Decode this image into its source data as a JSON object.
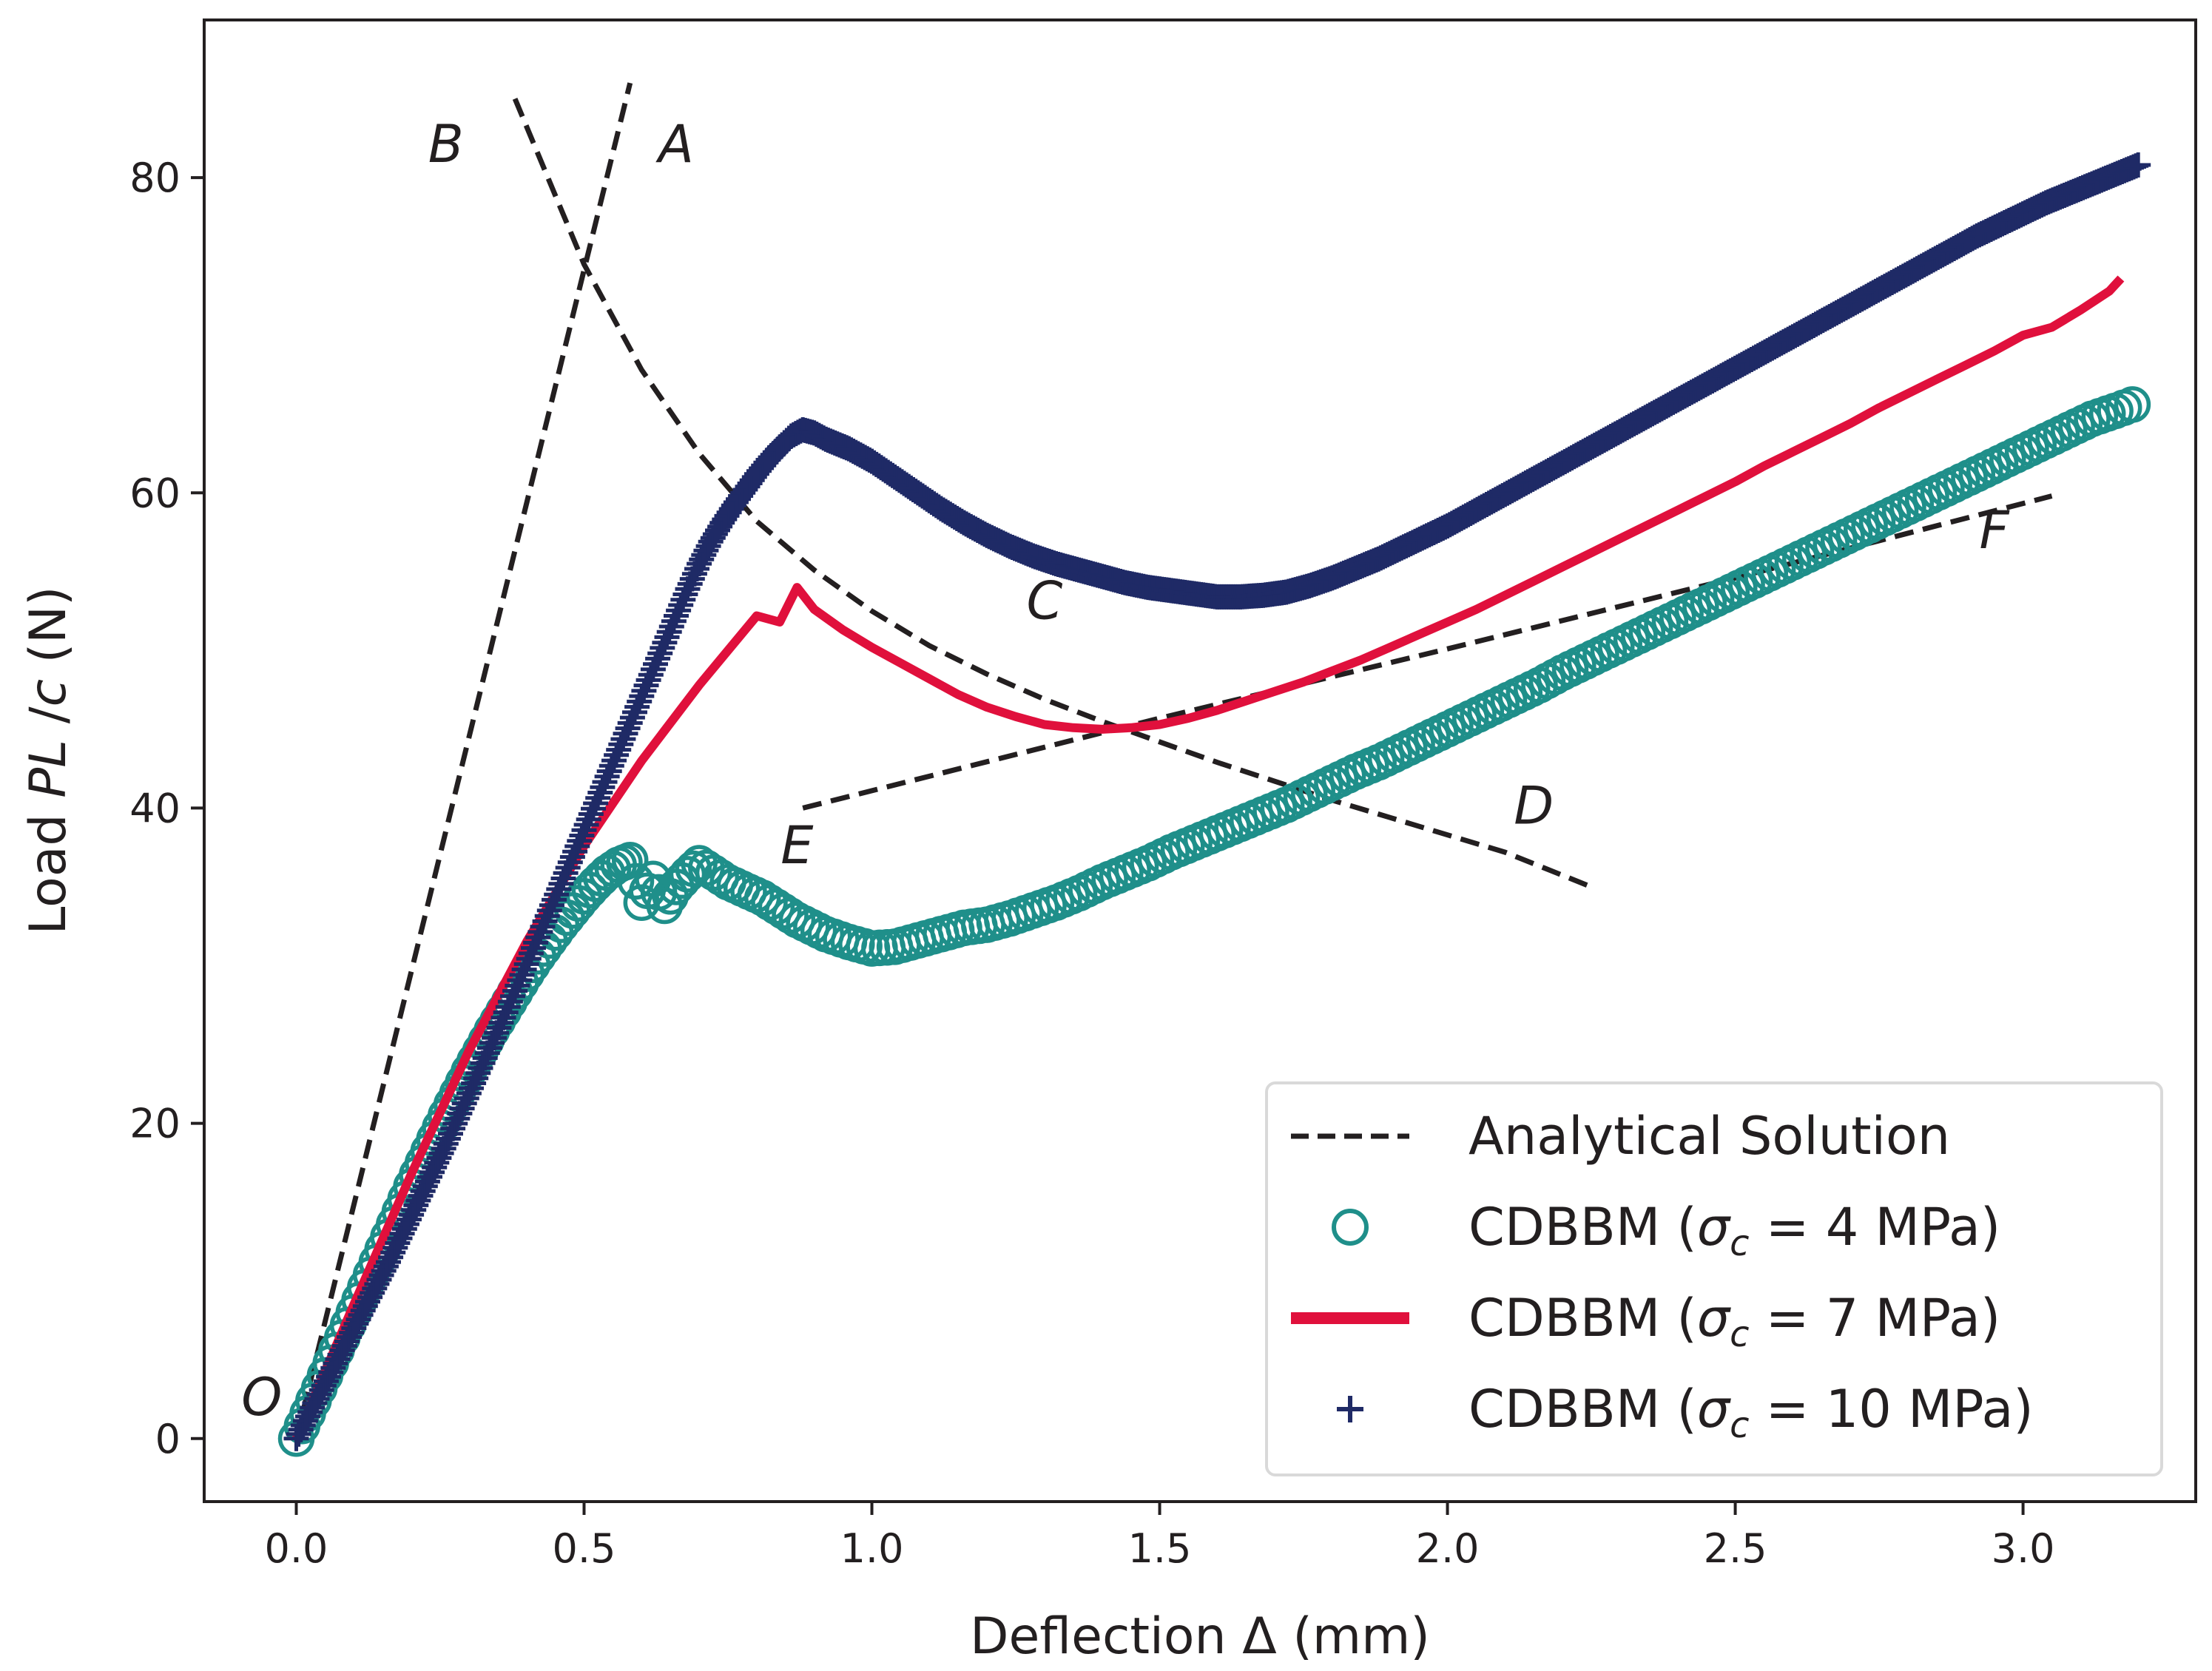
{
  "chart_data": {
    "type": "line",
    "xlabel": "Deflection Δ (mm)",
    "ylabel_parts": [
      "Load ",
      "PL",
      " /",
      "c",
      " (N)"
    ],
    "xlim": [
      -0.16,
      3.3
    ],
    "ylim": [
      -4,
      90
    ],
    "x_ticks": [
      0.0,
      0.5,
      1.0,
      1.5,
      2.0,
      2.5,
      3.0
    ],
    "x_tick_labels": [
      "0.0",
      "0.5",
      "1.0",
      "1.5",
      "2.0",
      "2.5",
      "3.0"
    ],
    "y_ticks": [
      0,
      20,
      40,
      60,
      80
    ],
    "y_tick_labels": [
      "0",
      "20",
      "40",
      "60",
      "80"
    ],
    "annotations": [
      {
        "text": "O",
        "x": -0.06,
        "y": 1.5
      },
      {
        "text": "B",
        "x": 0.26,
        "y": 81
      },
      {
        "text": "A",
        "x": 0.66,
        "y": 81
      },
      {
        "text": "C",
        "x": 1.3,
        "y": 52
      },
      {
        "text": "D",
        "x": 2.15,
        "y": 39
      },
      {
        "text": "E",
        "x": 0.87,
        "y": 36.5
      },
      {
        "text": "F",
        "x": 2.95,
        "y": 56.5
      }
    ],
    "colors": {
      "analytical": "#231f20",
      "sigma4": "#1f8f8a",
      "sigma7": "#e0103c",
      "sigma10": "#1f2a66"
    },
    "legend": {
      "placement": "lower-right",
      "entries": [
        {
          "label": "Analytical Solution",
          "style": "dashed"
        },
        {
          "label": "CDBBM (",
          "sym": "σ",
          "sub": "c",
          "rest": " = 4 MPa)",
          "style": "circle"
        },
        {
          "label": "CDBBM (",
          "sym": "σ",
          "sub": "c",
          "rest": " = 7 MPa)",
          "style": "solid"
        },
        {
          "label": "CDBBM (",
          "sym": "σ",
          "sub": "c",
          "rest": " = 10 MPa)",
          "style": "plus"
        }
      ]
    },
    "series": [
      {
        "name": "Analytical A (O–A)",
        "style": "dashed",
        "x": [
          0.0,
          0.58
        ],
        "y": [
          0.0,
          86.0
        ]
      },
      {
        "name": "Analytical B–D",
        "style": "dashed",
        "x": [
          0.38,
          0.5,
          0.6,
          0.7,
          0.8,
          0.9,
          1.0,
          1.1,
          1.2,
          1.3,
          1.4,
          1.5,
          1.6,
          1.7,
          1.8,
          1.9,
          2.0,
          2.1,
          2.25
        ],
        "y": [
          85.0,
          74.5,
          67.8,
          62.5,
          58.2,
          55.1,
          52.5,
          50.3,
          48.5,
          46.9,
          45.5,
          44.2,
          42.9,
          41.7,
          40.5,
          39.4,
          38.3,
          37.2,
          35.0
        ]
      },
      {
        "name": "Analytical E–F",
        "style": "dashed",
        "x": [
          0.88,
          1.5,
          2.0,
          2.5,
          3.05
        ],
        "y": [
          40.0,
          45.7,
          50.1,
          54.6,
          59.8
        ]
      },
      {
        "name": "CDBBM σc = 4 MPa",
        "style": "circle",
        "x": [
          0.0,
          0.02,
          0.04,
          0.06,
          0.08,
          0.1,
          0.12,
          0.14,
          0.16,
          0.18,
          0.2,
          0.22,
          0.24,
          0.26,
          0.28,
          0.3,
          0.32,
          0.34,
          0.36,
          0.38,
          0.4,
          0.42,
          0.44,
          0.46,
          0.48,
          0.5,
          0.52,
          0.54,
          0.56,
          0.58,
          0.6,
          0.62,
          0.64,
          0.66,
          0.68,
          0.7,
          0.75,
          0.81,
          0.87,
          0.92,
          0.96,
          1.0,
          1.04,
          1.08,
          1.12,
          1.16,
          1.2,
          1.24,
          1.28,
          1.32,
          1.36,
          1.4,
          1.44,
          1.48,
          1.52,
          1.56,
          1.6,
          1.64,
          1.68,
          1.72,
          1.76,
          1.8,
          1.84,
          1.88,
          1.92,
          1.96,
          2.0,
          2.04,
          2.08,
          2.12,
          2.16,
          2.2,
          2.24,
          2.28,
          2.32,
          2.36,
          2.4,
          2.44,
          2.48,
          2.52,
          2.56,
          2.6,
          2.64,
          2.68,
          2.72,
          2.76,
          2.8,
          2.84,
          2.88,
          2.92,
          2.96,
          3.0,
          3.04,
          3.08,
          3.12,
          3.16,
          3.19
        ],
        "y": [
          0.0,
          1.6,
          3.2,
          4.8,
          6.4,
          8.0,
          9.6,
          11.2,
          12.8,
          14.4,
          16.0,
          17.5,
          19.0,
          20.5,
          21.9,
          23.3,
          24.6,
          25.9,
          27.1,
          28.3,
          29.5,
          30.6,
          31.6,
          32.6,
          33.5,
          34.4,
          35.2,
          35.9,
          36.4,
          36.7,
          34.0,
          35.5,
          33.8,
          35.0,
          35.8,
          36.5,
          35.3,
          34.3,
          32.9,
          32.0,
          31.5,
          31.1,
          31.2,
          31.6,
          32.0,
          32.4,
          32.6,
          33.0,
          33.5,
          34.0,
          34.6,
          35.3,
          35.9,
          36.5,
          37.2,
          37.8,
          38.4,
          39.0,
          39.6,
          40.2,
          40.9,
          41.6,
          42.3,
          42.9,
          43.6,
          44.3,
          45.0,
          45.7,
          46.4,
          47.1,
          47.8,
          48.6,
          49.3,
          50.0,
          50.7,
          51.4,
          52.1,
          52.8,
          53.5,
          54.2,
          54.9,
          55.6,
          56.3,
          57.0,
          57.7,
          58.4,
          59.1,
          59.8,
          60.5,
          61.2,
          61.9,
          62.6,
          63.3,
          64.0,
          64.7,
          65.2,
          65.6
        ]
      },
      {
        "name": "CDBBM σc = 7 MPa",
        "style": "solid",
        "x": [
          0.0,
          0.1,
          0.2,
          0.3,
          0.4,
          0.5,
          0.6,
          0.7,
          0.8,
          0.84,
          0.87,
          0.9,
          0.95,
          1.0,
          1.05,
          1.1,
          1.15,
          1.2,
          1.25,
          1.3,
          1.35,
          1.4,
          1.45,
          1.5,
          1.55,
          1.6,
          1.65,
          1.7,
          1.75,
          1.8,
          1.85,
          1.9,
          1.95,
          2.0,
          2.05,
          2.1,
          2.15,
          2.2,
          2.25,
          2.3,
          2.35,
          2.4,
          2.45,
          2.5,
          2.55,
          2.6,
          2.65,
          2.7,
          2.75,
          2.8,
          2.85,
          2.9,
          2.95,
          3.0,
          3.05,
          3.1,
          3.15,
          3.17
        ],
        "y": [
          0.0,
          8.5,
          16.8,
          24.6,
          31.5,
          37.6,
          43.0,
          47.8,
          52.2,
          51.8,
          54.0,
          52.6,
          51.3,
          50.2,
          49.2,
          48.2,
          47.2,
          46.4,
          45.8,
          45.3,
          45.1,
          45.0,
          45.1,
          45.3,
          45.7,
          46.2,
          46.8,
          47.4,
          48.0,
          48.7,
          49.4,
          50.2,
          51.0,
          51.8,
          52.6,
          53.5,
          54.4,
          55.3,
          56.2,
          57.1,
          58.0,
          58.9,
          59.8,
          60.7,
          61.7,
          62.6,
          63.5,
          64.4,
          65.4,
          66.3,
          67.2,
          68.1,
          69.0,
          70.0,
          70.5,
          71.6,
          72.8,
          73.6
        ]
      },
      {
        "name": "CDBBM σc = 10 MPa",
        "style": "plus",
        "x": [
          0.0,
          0.02,
          0.04,
          0.06,
          0.08,
          0.1,
          0.12,
          0.14,
          0.16,
          0.18,
          0.2,
          0.22,
          0.24,
          0.26,
          0.28,
          0.3,
          0.32,
          0.34,
          0.36,
          0.38,
          0.4,
          0.42,
          0.44,
          0.46,
          0.48,
          0.5,
          0.52,
          0.54,
          0.56,
          0.58,
          0.6,
          0.62,
          0.64,
          0.66,
          0.68,
          0.7,
          0.72,
          0.74,
          0.76,
          0.78,
          0.8,
          0.82,
          0.84,
          0.86,
          0.88,
          0.9,
          0.92,
          0.96,
          1.0,
          1.04,
          1.08,
          1.12,
          1.16,
          1.2,
          1.24,
          1.28,
          1.32,
          1.36,
          1.4,
          1.44,
          1.48,
          1.52,
          1.56,
          1.6,
          1.64,
          1.68,
          1.72,
          1.76,
          1.8,
          1.84,
          1.88,
          1.92,
          1.96,
          2.0,
          2.04,
          2.08,
          2.12,
          2.16,
          2.2,
          2.24,
          2.28,
          2.32,
          2.36,
          2.4,
          2.44,
          2.48,
          2.52,
          2.56,
          2.6,
          2.64,
          2.68,
          2.72,
          2.76,
          2.8,
          2.84,
          2.88,
          2.92,
          2.96,
          3.0,
          3.04,
          3.08,
          3.12,
          3.16,
          3.2
        ],
        "y": [
          0.0,
          1.4,
          2.8,
          4.2,
          5.6,
          7.0,
          8.4,
          9.8,
          11.2,
          12.7,
          14.2,
          15.7,
          17.2,
          18.7,
          20.3,
          21.9,
          23.5,
          25.1,
          26.7,
          28.4,
          30.1,
          31.8,
          33.5,
          35.2,
          36.9,
          38.6,
          40.3,
          42.0,
          43.7,
          45.4,
          47.1,
          48.8,
          50.5,
          52.2,
          53.9,
          55.5,
          56.9,
          58.1,
          59.2,
          60.2,
          61.2,
          62.1,
          62.9,
          63.6,
          64.0,
          63.8,
          63.4,
          62.8,
          62.0,
          61.0,
          60.0,
          59.0,
          58.1,
          57.3,
          56.6,
          56.0,
          55.5,
          55.1,
          54.7,
          54.3,
          54.0,
          53.8,
          53.6,
          53.4,
          53.4,
          53.5,
          53.7,
          54.1,
          54.6,
          55.2,
          55.8,
          56.5,
          57.2,
          57.9,
          58.7,
          59.5,
          60.3,
          61.1,
          61.9,
          62.7,
          63.5,
          64.3,
          65.1,
          65.9,
          66.7,
          67.5,
          68.3,
          69.1,
          69.9,
          70.7,
          71.5,
          72.3,
          73.1,
          73.9,
          74.7,
          75.5,
          76.3,
          77.0,
          77.7,
          78.4,
          79.0,
          79.6,
          80.2,
          80.8
        ]
      }
    ]
  }
}
